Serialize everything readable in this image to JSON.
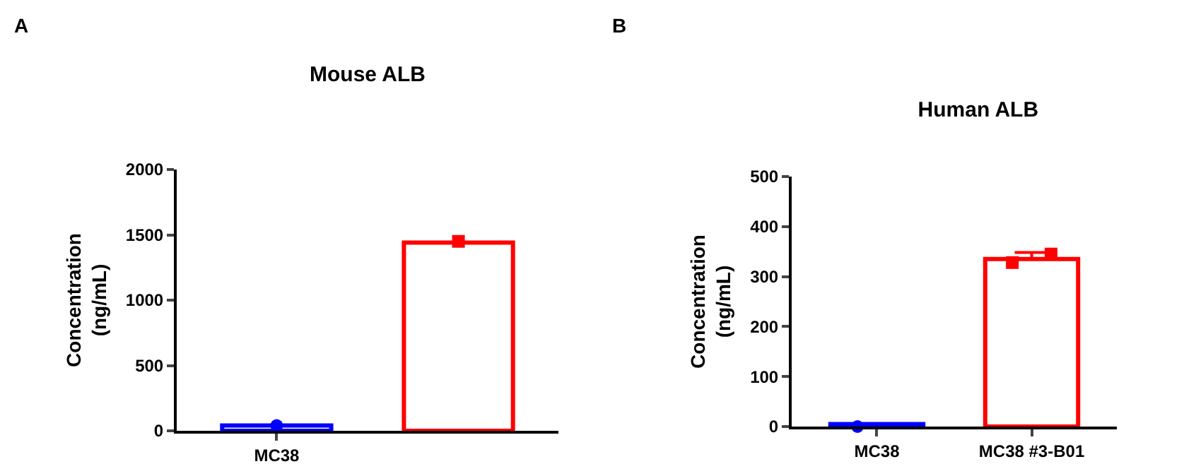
{
  "chart_data": [
    {
      "type": "bar",
      "title": "Mouse ALB",
      "annotations": [
        "A"
      ],
      "ylabel": "Concentration\n(ng/mL)",
      "categories": [
        "MC38",
        null
      ],
      "values": [
        40,
        1440
      ],
      "colors": [
        "#0000ff",
        "#ff0000"
      ],
      "series": [
        {
          "type": "scatter",
          "values": [
            40,
            1450
          ],
          "colors": [
            "#0000ff",
            "#ff0000"
          ]
        }
      ],
      "ylim": [
        0,
        2000
      ],
      "yticks": [
        0,
        500,
        1000,
        1500,
        2000
      ],
      "grid": false
    },
    {
      "type": "bar",
      "title": "Human ALB",
      "annotations": [
        "B"
      ],
      "ylabel": "Concentration\n(ng/mL)",
      "categories": [
        "MC38",
        "MC38 #3-B01"
      ],
      "values": [
        5,
        335
      ],
      "colors": [
        "#0000ff",
        "#ff0000"
      ],
      "errors": [
        null,
        [
          335,
          348
        ]
      ],
      "series": [
        {
          "type": "scatter",
          "values": [
            0,
            328
          ],
          "colors": [
            "#0000ff",
            "#ff0000"
          ]
        },
        {
          "type": "scatter",
          "values": [
            null,
            345
          ],
          "colors": [
            "#0000ff",
            "#ff0000"
          ]
        }
      ],
      "ylim": [
        0,
        500
      ],
      "yticks": [
        0,
        100,
        200,
        300,
        400,
        500
      ],
      "grid": false
    }
  ]
}
